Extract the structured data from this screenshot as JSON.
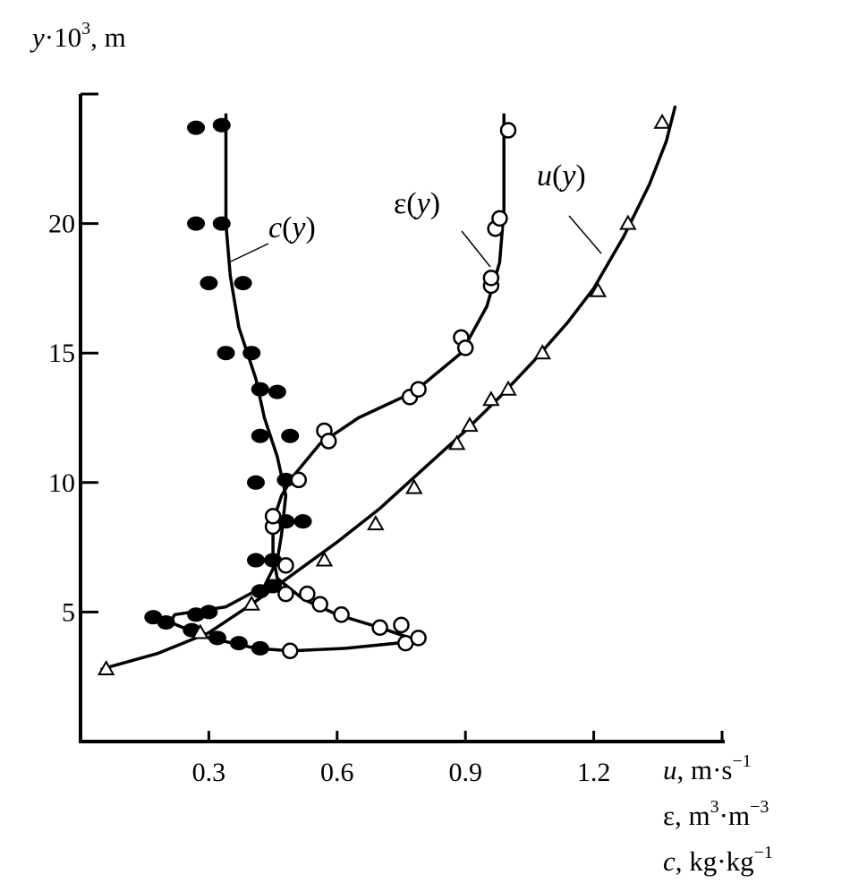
{
  "chart_data": {
    "type": "line",
    "title": "",
    "ylabel": "y·10³, m",
    "xlabels": [
      "u, m·s⁻¹",
      "ε, m³·m⁻³",
      "c, kg·kg⁻¹"
    ],
    "xlim": [
      0.0,
      1.5
    ],
    "ylim": [
      0,
      25
    ],
    "x_ticks": [
      0.3,
      0.6,
      0.9,
      1.2
    ],
    "y_ticks": [
      5,
      10,
      15,
      20
    ],
    "grid": false,
    "series": [
      {
        "name": "c(y)",
        "marker": "filled-circle",
        "color": "#000000",
        "curve": [
          [
            0.49,
            3.5
          ],
          [
            0.41,
            3.6
          ],
          [
            0.3,
            4.0
          ],
          [
            0.21,
            4.6
          ],
          [
            0.22,
            4.9
          ],
          [
            0.34,
            5.2
          ],
          [
            0.43,
            6.0
          ],
          [
            0.46,
            7.0
          ],
          [
            0.47,
            8.0
          ],
          [
            0.48,
            9.5
          ],
          [
            0.46,
            11.0
          ],
          [
            0.43,
            12.5
          ],
          [
            0.41,
            14.0
          ],
          [
            0.37,
            16.0
          ],
          [
            0.35,
            18.0
          ],
          [
            0.34,
            20.0
          ],
          [
            0.34,
            22.0
          ],
          [
            0.34,
            24.2
          ]
        ],
        "points": [
          [
            0.42,
            3.6
          ],
          [
            0.37,
            3.8
          ],
          [
            0.32,
            4.0
          ],
          [
            0.26,
            4.3
          ],
          [
            0.2,
            4.6
          ],
          [
            0.17,
            4.8
          ],
          [
            0.27,
            4.9
          ],
          [
            0.3,
            5.0
          ],
          [
            0.42,
            5.8
          ],
          [
            0.45,
            6.0
          ],
          [
            0.41,
            7.0
          ],
          [
            0.45,
            7.0
          ],
          [
            0.48,
            8.5
          ],
          [
            0.52,
            8.5
          ],
          [
            0.41,
            10.0
          ],
          [
            0.48,
            10.1
          ],
          [
            0.42,
            11.8
          ],
          [
            0.49,
            11.8
          ],
          [
            0.42,
            13.6
          ],
          [
            0.46,
            13.5
          ],
          [
            0.34,
            15.0
          ],
          [
            0.4,
            15.0
          ],
          [
            0.3,
            17.7
          ],
          [
            0.38,
            17.7
          ],
          [
            0.27,
            20.0
          ],
          [
            0.33,
            20.0
          ],
          [
            0.27,
            23.7
          ],
          [
            0.33,
            23.8
          ]
        ]
      },
      {
        "name": "ε(y)",
        "marker": "open-circle",
        "color": "#000000",
        "curve": [
          [
            0.49,
            3.5
          ],
          [
            0.62,
            3.6
          ],
          [
            0.74,
            3.8
          ],
          [
            0.77,
            4.0
          ],
          [
            0.7,
            4.4
          ],
          [
            0.6,
            4.9
          ],
          [
            0.52,
            5.5
          ],
          [
            0.46,
            6.3
          ],
          [
            0.45,
            7.2
          ],
          [
            0.45,
            8.5
          ],
          [
            0.47,
            9.5
          ],
          [
            0.5,
            10.3
          ],
          [
            0.56,
            11.5
          ],
          [
            0.65,
            12.5
          ],
          [
            0.78,
            13.5
          ],
          [
            0.89,
            15.0
          ],
          [
            0.95,
            16.8
          ],
          [
            0.98,
            18.5
          ],
          [
            0.99,
            20.5
          ],
          [
            0.99,
            22.5
          ],
          [
            0.99,
            24.2
          ]
        ],
        "points": [
          [
            0.49,
            3.5
          ],
          [
            0.76,
            3.8
          ],
          [
            0.79,
            4.0
          ],
          [
            0.7,
            4.4
          ],
          [
            0.75,
            4.5
          ],
          [
            0.61,
            4.9
          ],
          [
            0.56,
            5.3
          ],
          [
            0.53,
            5.7
          ],
          [
            0.48,
            5.7
          ],
          [
            0.48,
            6.8
          ],
          [
            0.45,
            8.3
          ],
          [
            0.45,
            8.7
          ],
          [
            0.51,
            10.1
          ],
          [
            0.57,
            12.0
          ],
          [
            0.58,
            11.6
          ],
          [
            0.77,
            13.3
          ],
          [
            0.79,
            13.6
          ],
          [
            0.89,
            15.6
          ],
          [
            0.9,
            15.2
          ],
          [
            0.96,
            17.6
          ],
          [
            0.96,
            17.9
          ],
          [
            0.97,
            19.8
          ],
          [
            0.98,
            20.2
          ],
          [
            1.0,
            23.6
          ]
        ]
      },
      {
        "name": "u(y)",
        "marker": "open-triangle",
        "color": "#000000",
        "curve": [
          [
            0.05,
            2.8
          ],
          [
            0.18,
            3.4
          ],
          [
            0.3,
            4.2
          ],
          [
            0.4,
            5.3
          ],
          [
            0.5,
            6.5
          ],
          [
            0.6,
            7.7
          ],
          [
            0.7,
            9.0
          ],
          [
            0.8,
            10.5
          ],
          [
            0.9,
            12.0
          ],
          [
            0.98,
            13.3
          ],
          [
            1.06,
            14.7
          ],
          [
            1.14,
            16.2
          ],
          [
            1.2,
            17.5
          ],
          [
            1.27,
            19.5
          ],
          [
            1.33,
            21.5
          ],
          [
            1.37,
            23.2
          ],
          [
            1.39,
            24.5
          ]
        ],
        "points": [
          [
            0.06,
            2.8
          ],
          [
            0.28,
            4.2
          ],
          [
            0.4,
            5.3
          ],
          [
            0.57,
            7.0
          ],
          [
            0.69,
            8.4
          ],
          [
            0.78,
            9.8
          ],
          [
            0.88,
            11.5
          ],
          [
            0.91,
            12.2
          ],
          [
            0.96,
            13.2
          ],
          [
            1.0,
            13.6
          ],
          [
            1.08,
            15.0
          ],
          [
            1.21,
            17.4
          ],
          [
            1.28,
            20.0
          ],
          [
            1.36,
            23.9
          ]
        ]
      }
    ],
    "labels": {
      "c_pre": "c",
      "e_pre": "ε",
      "u_pre": "u",
      "y_var": "y",
      "open": "(",
      "close": ")"
    }
  }
}
